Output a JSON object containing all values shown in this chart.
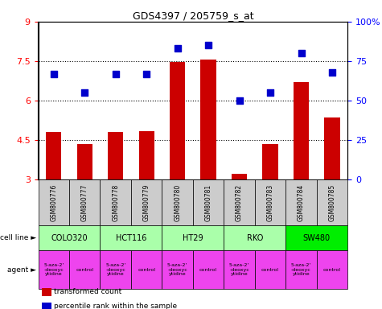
{
  "title": "GDS4397 / 205759_s_at",
  "samples": [
    "GSM800776",
    "GSM800777",
    "GSM800778",
    "GSM800779",
    "GSM800780",
    "GSM800781",
    "GSM800782",
    "GSM800783",
    "GSM800784",
    "GSM800785"
  ],
  "red_values": [
    4.8,
    4.35,
    4.8,
    4.82,
    7.45,
    7.55,
    3.2,
    4.35,
    6.7,
    5.35
  ],
  "blue_values": [
    67,
    55,
    67,
    67,
    83,
    85,
    50,
    55,
    80,
    68
  ],
  "ylim_left": [
    3,
    9
  ],
  "ylim_right": [
    0,
    100
  ],
  "yticks_left": [
    3,
    4.5,
    6,
    7.5,
    9
  ],
  "yticks_right": [
    0,
    25,
    50,
    75,
    100
  ],
  "ytick_labels_left": [
    "3",
    "4.5",
    "6",
    "7.5",
    "9"
  ],
  "ytick_labels_right": [
    "0",
    "25",
    "50",
    "75",
    "100%"
  ],
  "cell_lines": [
    {
      "name": "COLO320",
      "start": 0,
      "end": 2,
      "color": "#aaffaa"
    },
    {
      "name": "HCT116",
      "start": 2,
      "end": 4,
      "color": "#aaffaa"
    },
    {
      "name": "HT29",
      "start": 4,
      "end": 6,
      "color": "#aaffaa"
    },
    {
      "name": "RKO",
      "start": 6,
      "end": 8,
      "color": "#aaffaa"
    },
    {
      "name": "SW480",
      "start": 8,
      "end": 10,
      "color": "#00ee00"
    }
  ],
  "agents": [
    {
      "name": "5-aza-2'\n-deoxyc\nytidine",
      "start": 0,
      "end": 1,
      "color": "#ee44ee"
    },
    {
      "name": "control",
      "start": 1,
      "end": 2,
      "color": "#ee44ee"
    },
    {
      "name": "5-aza-2'\n-deoxyc\nytidine",
      "start": 2,
      "end": 3,
      "color": "#ee44ee"
    },
    {
      "name": "control",
      "start": 3,
      "end": 4,
      "color": "#ee44ee"
    },
    {
      "name": "5-aza-2'\n-deoxyc\nytidine",
      "start": 4,
      "end": 5,
      "color": "#ee44ee"
    },
    {
      "name": "control",
      "start": 5,
      "end": 6,
      "color": "#ee44ee"
    },
    {
      "name": "5-aza-2'\n-deoxyc\nytidine",
      "start": 6,
      "end": 7,
      "color": "#ee44ee"
    },
    {
      "name": "control",
      "start": 7,
      "end": 8,
      "color": "#ee44ee"
    },
    {
      "name": "5-aza-2'\n-deoxyc\nytidine",
      "start": 8,
      "end": 9,
      "color": "#ee44ee"
    },
    {
      "name": "control",
      "start": 9,
      "end": 10,
      "color": "#ee44ee"
    }
  ],
  "bar_color": "#cc0000",
  "dot_color": "#0000cc",
  "bar_width": 0.5,
  "dot_size": 40,
  "sample_color": "#cccccc",
  "dotted_line_values": [
    4.5,
    6.0,
    7.5
  ],
  "legend_items": [
    {
      "label": "transformed count",
      "color": "#cc0000"
    },
    {
      "label": "percentile rank within the sample",
      "color": "#0000cc"
    }
  ]
}
